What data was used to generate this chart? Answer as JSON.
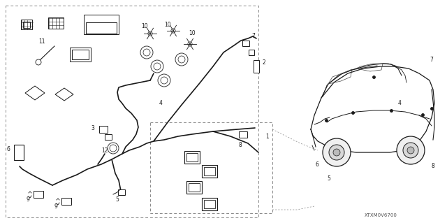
{
  "background_color": "#ffffff",
  "fig_width": 6.4,
  "fig_height": 3.19,
  "dpi": 100,
  "watermark": "XTXM0V6700",
  "dot_color": "#888888",
  "line_color": "#1a1a1a",
  "label_fontsize": 5.5,
  "label_color": "#1a1a1a"
}
